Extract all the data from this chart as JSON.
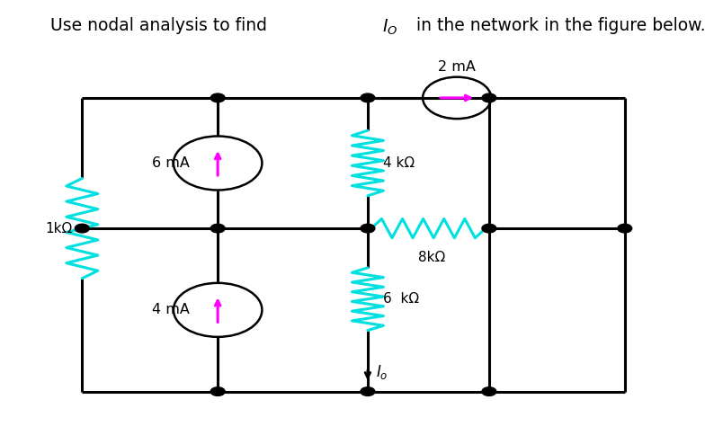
{
  "title_parts": [
    "Use nodal analysis to find ",
    "I",
    "0",
    " in the network in the figure below."
  ],
  "title_fontsize": 13.5,
  "bg_color": "#ffffff",
  "resistor_color": "#00e0e0",
  "arrow_color": "#ff00ff",
  "circuit": {
    "L": 0.115,
    "R": 0.875,
    "T": 0.775,
    "M": 0.475,
    "B": 0.1,
    "C1": 0.305,
    "C2": 0.515,
    "C3": 0.685
  },
  "labels": {
    "R1k": "1kΩ",
    "R4k": "4 kΩ",
    "R6k": "6  kΩ",
    "R8k": "8kΩ",
    "I6mA": "6 mA",
    "I4mA": "4 mA",
    "I2mA": "2 mA",
    "Io": "I_o"
  }
}
